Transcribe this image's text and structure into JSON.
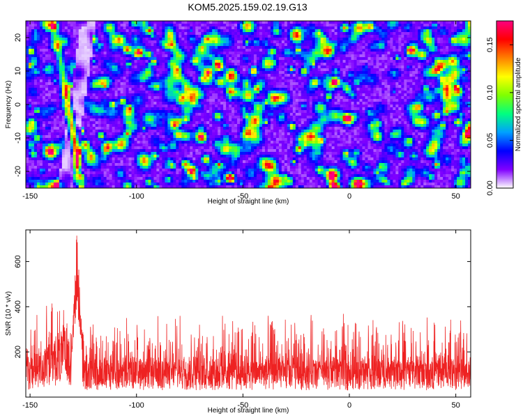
{
  "title": "KOM5.2025.159.02.19.G13",
  "chart_data": [
    {
      "type": "heatmap",
      "xlabel": "Height of straight line (km)",
      "ylabel": "Frequency (Hz)",
      "xlim": [
        -152,
        57
      ],
      "ylim": [
        -25,
        25
      ],
      "xticks": [
        -150,
        -100,
        -50,
        0,
        50
      ],
      "xtick_labels": [
        "-150",
        "-100",
        "-50",
        "0",
        "50"
      ],
      "yticks": [
        -20,
        -10,
        0,
        10,
        20
      ],
      "ytick_labels": [
        "-20",
        "-10",
        "0",
        "10",
        "20"
      ],
      "colorbar": {
        "label": "Normalized spectral amplitude",
        "range": [
          0.0,
          0.175
        ],
        "ticks": [
          0.0,
          0.05,
          0.1,
          0.15
        ],
        "tick_labels": [
          "0.00",
          "0.05",
          "0.10",
          "0.15"
        ],
        "colors": [
          "#ffffff",
          "#8000ff",
          "#0000ff",
          "#00a0ff",
          "#00ff80",
          "#80ff00",
          "#ffff00",
          "#ff8000",
          "#ff0000",
          "#ff0080"
        ]
      },
      "features": [
        {
          "x_start": -139,
          "y_start": 25,
          "x_end": -128,
          "y_end": -15,
          "peak_amplitude": 0.17
        }
      ]
    },
    {
      "type": "line",
      "xlabel": "Height of straight line (km)",
      "ylabel": "SNR (10 * v/v)",
      "xlim": [
        -152,
        57
      ],
      "ylim": [
        0,
        740
      ],
      "xticks": [
        -150,
        -100,
        -50,
        0,
        50
      ],
      "xtick_labels": [
        "-150",
        "-100",
        "-50",
        "0",
        "50"
      ],
      "yticks": [
        200,
        400,
        600
      ],
      "ytick_labels": [
        "200",
        "400",
        "600"
      ],
      "color": "#ee2222",
      "peak": {
        "x": -128,
        "y": 740
      },
      "baseline": 120
    }
  ]
}
